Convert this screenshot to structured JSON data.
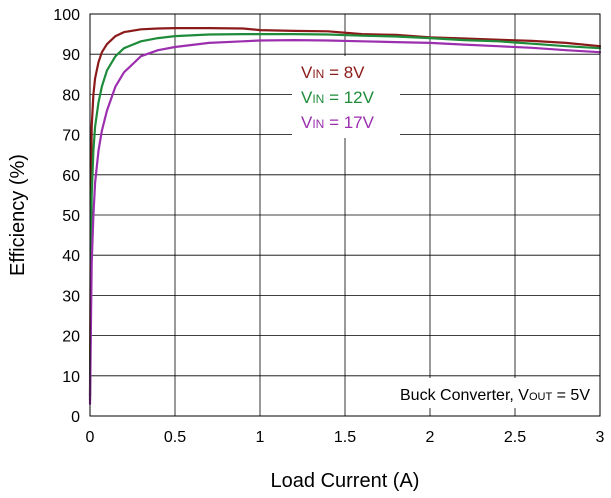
{
  "chart_data": {
    "type": "line",
    "title": "",
    "xlabel": "Load Current (A)",
    "ylabel": "Efficiency (%)",
    "xlim": [
      0,
      3
    ],
    "ylim": [
      0,
      100
    ],
    "xticks": [
      "0",
      "0.5",
      "1",
      "1.5",
      "2",
      "2.5",
      "3"
    ],
    "yticks": [
      "0",
      "10",
      "20",
      "30",
      "40",
      "50",
      "60",
      "70",
      "80",
      "90",
      "100"
    ],
    "grid": true,
    "legend": {
      "placement": "upper-center"
    },
    "series": [
      {
        "name": "VIN = 8V",
        "label_main": "V",
        "label_sub": "IN",
        "label_rest": " = 8V",
        "color": "#8B1A1A",
        "x": [
          0,
          0.005,
          0.01,
          0.02,
          0.03,
          0.05,
          0.07,
          0.1,
          0.15,
          0.2,
          0.3,
          0.4,
          0.5,
          0.7,
          0.9,
          1.0,
          1.2,
          1.4,
          1.6,
          1.8,
          2.0,
          2.2,
          2.4,
          2.6,
          2.8,
          3.0
        ],
        "y": [
          5,
          50,
          72,
          80,
          84,
          88,
          90.5,
          92.5,
          94.5,
          95.5,
          96.2,
          96.4,
          96.5,
          96.5,
          96.4,
          96.0,
          95.8,
          95.7,
          95.0,
          94.8,
          94.2,
          93.9,
          93.6,
          93.3,
          92.8,
          92.0
        ]
      },
      {
        "name": "VIN = 12V",
        "label_main": "V",
        "label_sub": "IN",
        "label_rest": " = 12V",
        "color": "#1E8C3A",
        "x": [
          0,
          0.005,
          0.01,
          0.02,
          0.03,
          0.05,
          0.07,
          0.1,
          0.15,
          0.2,
          0.3,
          0.4,
          0.5,
          0.7,
          0.9,
          1.0,
          1.2,
          1.4,
          1.6,
          1.8,
          2.0,
          2.2,
          2.4,
          2.6,
          2.8,
          3.0
        ],
        "y": [
          4,
          30,
          55,
          66,
          72,
          78,
          82,
          86,
          89.5,
          91.5,
          93.2,
          94.0,
          94.5,
          94.9,
          95.0,
          95.0,
          95.0,
          94.9,
          94.6,
          94.4,
          94.0,
          93.5,
          93.2,
          92.6,
          92.0,
          91.5
        ]
      },
      {
        "name": "VIN = 17V",
        "label_main": "V",
        "label_sub": "IN",
        "label_rest": " = 17V",
        "color": "#9B2FAE",
        "x": [
          0,
          0.005,
          0.01,
          0.02,
          0.03,
          0.05,
          0.07,
          0.1,
          0.15,
          0.2,
          0.3,
          0.4,
          0.5,
          0.7,
          0.9,
          1.0,
          1.2,
          1.4,
          1.6,
          1.8,
          2.0,
          2.2,
          2.4,
          2.6,
          2.8,
          3.0
        ],
        "y": [
          3,
          20,
          38,
          50,
          58,
          66,
          71,
          76,
          82,
          85.5,
          89.5,
          91.0,
          91.8,
          92.8,
          93.2,
          93.4,
          93.5,
          93.4,
          93.2,
          93.0,
          92.8,
          92.4,
          92.0,
          91.6,
          91.0,
          90.5
        ]
      }
    ],
    "annotation": {
      "text_main": "Buck Converter, V",
      "text_sub": "OUT",
      "text_rest": " = 5V"
    }
  }
}
